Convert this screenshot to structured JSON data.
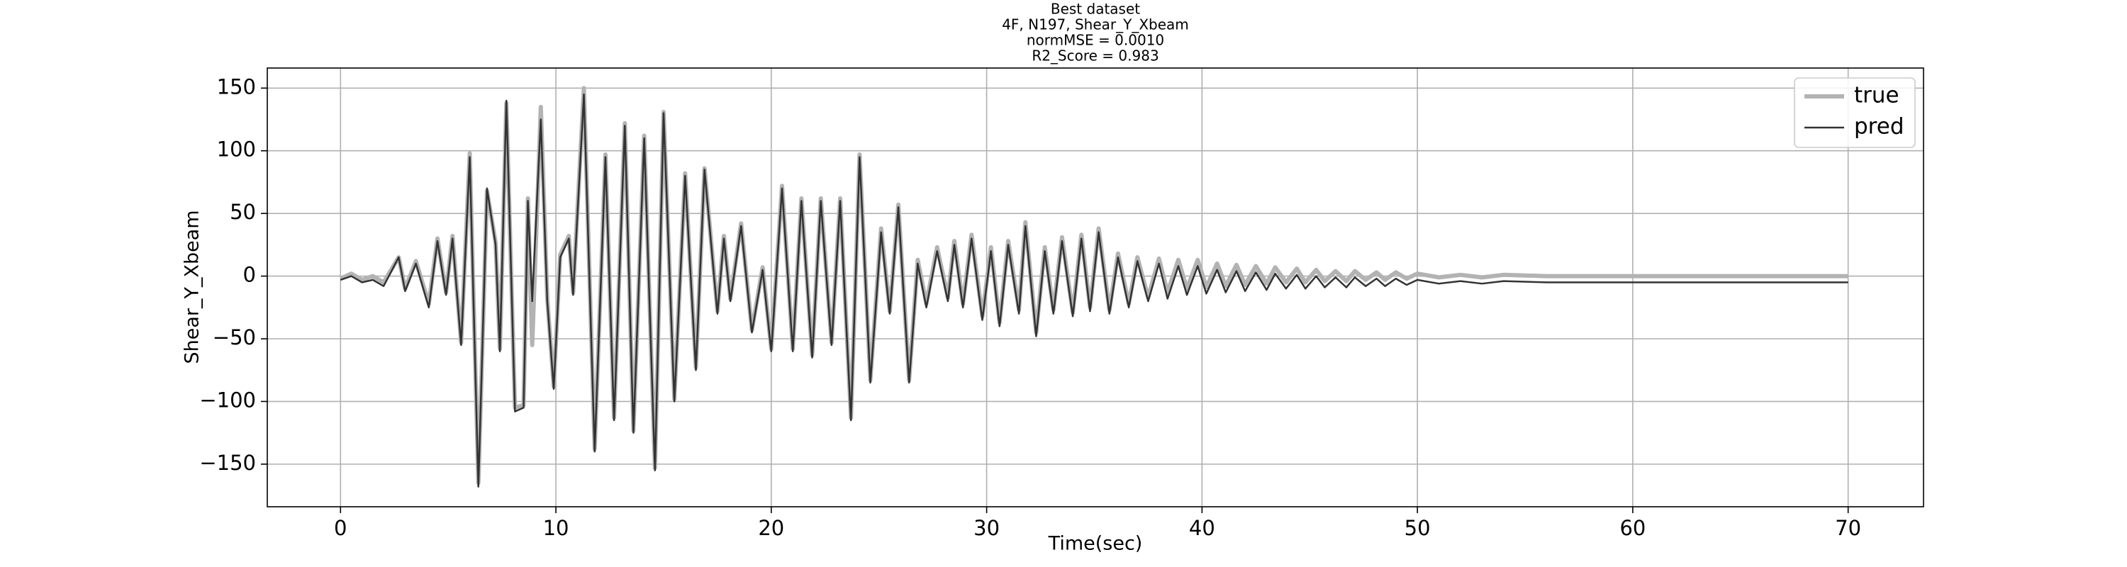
{
  "chart_data": {
    "type": "line",
    "title": [
      "Best dataset",
      "4F, N197, Shear_Y_Xbeam",
      "normMSE = 0.0010",
      "R2_Score = 0.983"
    ],
    "xlabel": "Time(sec)",
    "ylabel": "Shear_Y_Xbeam",
    "x": [
      0,
      0.5,
      1,
      1.5,
      2,
      2.7,
      3,
      3.5,
      4.1,
      4.5,
      4.9,
      5.2,
      5.6,
      6.0,
      6.4,
      6.8,
      7.2,
      7.4,
      7.7,
      8.1,
      8.5,
      8.7,
      8.9,
      9.3,
      9.6,
      9.9,
      10.2,
      10.6,
      10.8,
      11.3,
      11.8,
      12.3,
      12.7,
      13.2,
      13.6,
      14.1,
      14.6,
      15.0,
      15.5,
      16.0,
      16.5,
      16.9,
      17.5,
      17.8,
      18.1,
      18.6,
      19.1,
      19.6,
      20.0,
      20.5,
      21.0,
      21.4,
      21.9,
      22.3,
      22.8,
      23.2,
      23.7,
      24.1,
      24.6,
      25.1,
      25.5,
      25.9,
      26.4,
      26.8,
      27.2,
      27.7,
      28.2,
      28.5,
      28.9,
      29.3,
      29.8,
      30.2,
      30.6,
      31.0,
      31.5,
      31.8,
      32.3,
      32.7,
      33.1,
      33.5,
      34.0,
      34.4,
      34.8,
      35.2,
      35.7,
      36.1,
      36.6,
      37.0,
      37.5,
      38.0,
      38.4,
      38.9,
      39.3,
      39.8,
      40.2,
      40.7,
      41.1,
      41.6,
      42.0,
      42.5,
      43.0,
      43.4,
      43.9,
      44.4,
      44.8,
      45.3,
      45.7,
      46.2,
      46.7,
      47.1,
      47.6,
      48.1,
      48.5,
      49.0,
      49.5,
      50,
      51,
      52,
      53,
      54,
      56,
      58,
      60,
      65,
      70
    ],
    "series": [
      {
        "name": "true",
        "color": "#b3b3b3",
        "width": 6,
        "values": [
          -2,
          2,
          -3,
          0,
          -5,
          15,
          -10,
          12,
          -22,
          30,
          -13,
          32,
          -53,
          98,
          -165,
          68,
          27,
          -58,
          138,
          -105,
          -103,
          62,
          -55,
          135,
          -18,
          -88,
          17,
          32,
          -13,
          150,
          -138,
          97,
          -113,
          122,
          -123,
          112,
          -153,
          131,
          -98,
          82,
          -73,
          86,
          -28,
          32,
          -18,
          42,
          -43,
          7,
          -58,
          72,
          -58,
          62,
          -63,
          62,
          -53,
          62,
          -113,
          97,
          -83,
          38,
          -28,
          57,
          -83,
          13,
          -22,
          23,
          -17,
          28,
          -22,
          33,
          -32,
          23,
          -37,
          28,
          -27,
          43,
          -45,
          23,
          -27,
          31,
          -29,
          33,
          -25,
          38,
          -27,
          18,
          -22,
          15,
          -17,
          14,
          -13,
          13,
          -10,
          13,
          -9,
          10,
          -8,
          9,
          -7,
          8,
          -6,
          7,
          -5,
          6,
          -5,
          5,
          -4,
          4,
          -4,
          4,
          -3,
          3,
          -3,
          3,
          -2,
          2,
          -1,
          1,
          -1,
          1,
          0,
          0,
          0,
          0,
          0
        ]
      },
      {
        "name": "pred",
        "color": "#333333",
        "width": 2.5,
        "values": [
          -3,
          0,
          -5,
          -3,
          -8,
          15,
          -12,
          10,
          -25,
          28,
          -15,
          30,
          -55,
          95,
          -168,
          70,
          25,
          -60,
          140,
          -108,
          -105,
          60,
          -20,
          125,
          -20,
          -90,
          15,
          30,
          -15,
          145,
          -140,
          95,
          -115,
          120,
          -125,
          110,
          -155,
          130,
          -100,
          80,
          -75,
          85,
          -30,
          30,
          -20,
          40,
          -45,
          5,
          -60,
          70,
          -60,
          60,
          -65,
          60,
          -55,
          60,
          -115,
          95,
          -85,
          35,
          -30,
          55,
          -85,
          10,
          -25,
          20,
          -20,
          25,
          -25,
          30,
          -35,
          20,
          -40,
          25,
          -30,
          40,
          -48,
          20,
          -30,
          28,
          -32,
          30,
          -28,
          35,
          -30,
          15,
          -25,
          12,
          -20,
          10,
          -18,
          8,
          -15,
          8,
          -14,
          5,
          -13,
          4,
          -12,
          3,
          -11,
          2,
          -10,
          1,
          -10,
          0,
          -9,
          -1,
          -9,
          -1,
          -8,
          -2,
          -8,
          -2,
          -7,
          -3,
          -6,
          -4,
          -6,
          -4,
          -5,
          -5,
          -5,
          -5,
          -5
        ]
      }
    ],
    "xlim": [
      -3.4,
      73.5
    ],
    "ylim": [
      -184,
      166
    ],
    "xticks": [
      0,
      10,
      20,
      30,
      40,
      50,
      60,
      70
    ],
    "yticks": [
      {
        "value": -150,
        "label": "−150"
      },
      {
        "value": -100,
        "label": "−100"
      },
      {
        "value": -50,
        "label": "−50"
      },
      0,
      50,
      100,
      150
    ],
    "grid": true,
    "legend": "upper right"
  }
}
